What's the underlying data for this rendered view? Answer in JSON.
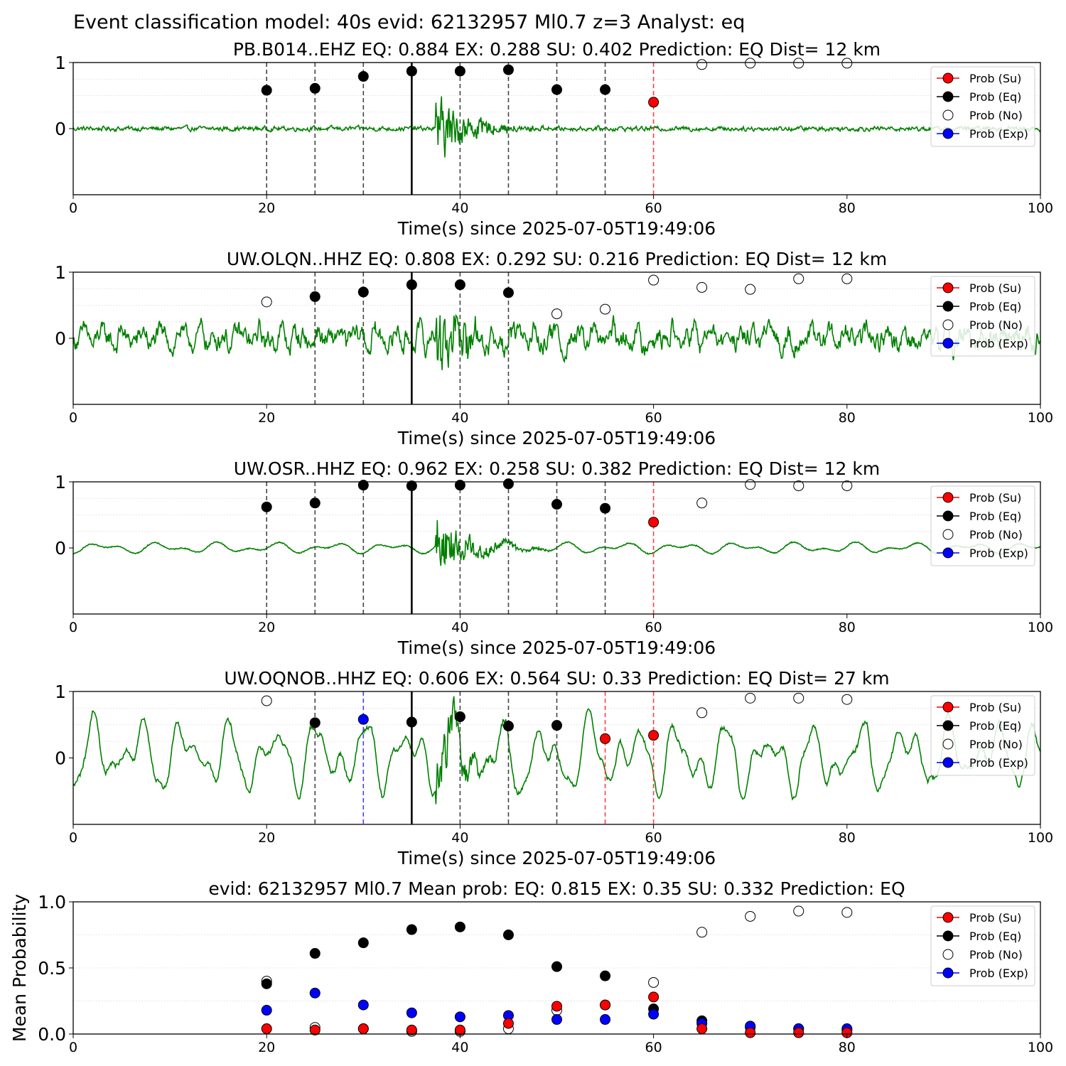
{
  "suptitle": "Event classification model: 40s evid: 62132957 Ml0.7 z=3 Analyst: eq",
  "legend_labels": [
    "Prob (Su)",
    "Prob (Eq)",
    "Prob (No)",
    "Prob (Exp)"
  ],
  "colors": {
    "su": "#ff0000",
    "eq": "#000000",
    "no": "#ffffff",
    "exp": "#0000ff",
    "trace": "#008000",
    "grid": "#dddddd"
  },
  "chart_data": [
    {
      "type": "scatter",
      "title": "PB.B014..EHZ   EQ: 0.884  EX: 0.288  SU: 0.402   Prediction: EQ    Dist= 12 km",
      "xlabel": "Time(s) since 2025-07-05T19:49:06",
      "xlim": [
        0,
        100
      ],
      "ylim": [
        -1,
        1
      ],
      "xticks": [
        "0",
        "20",
        "40",
        "60",
        "80",
        "100"
      ],
      "yticks": [
        "0",
        "1"
      ],
      "pick_line": 35,
      "window_lines": [
        {
          "x": 20,
          "class": "eq"
        },
        {
          "x": 25,
          "class": "eq"
        },
        {
          "x": 30,
          "class": "eq"
        },
        {
          "x": 40,
          "class": "eq"
        },
        {
          "x": 45,
          "class": "eq"
        },
        {
          "x": 50,
          "class": "eq"
        },
        {
          "x": 55,
          "class": "eq"
        },
        {
          "x": 60,
          "class": "su"
        }
      ],
      "points": [
        {
          "x": 20,
          "y": 0.58,
          "class": "eq"
        },
        {
          "x": 25,
          "y": 0.61,
          "class": "eq"
        },
        {
          "x": 30,
          "y": 0.79,
          "class": "eq"
        },
        {
          "x": 35,
          "y": 0.87,
          "class": "eq"
        },
        {
          "x": 40,
          "y": 0.87,
          "class": "eq"
        },
        {
          "x": 45,
          "y": 0.89,
          "class": "eq"
        },
        {
          "x": 50,
          "y": 0.59,
          "class": "eq"
        },
        {
          "x": 55,
          "y": 0.59,
          "class": "eq"
        },
        {
          "x": 60,
          "y": 0.4,
          "class": "su"
        },
        {
          "x": 65,
          "y": 0.97,
          "class": "no"
        },
        {
          "x": 70,
          "y": 0.99,
          "class": "no"
        },
        {
          "x": 75,
          "y": 0.99,
          "class": "no"
        },
        {
          "x": 80,
          "y": 0.99,
          "class": "no"
        }
      ],
      "waveform": {
        "kind": "impulsive",
        "noise": 0.025,
        "onset": 37.5,
        "peak": 0.5
      }
    },
    {
      "type": "scatter",
      "title": "UW.OLQN..HHZ   EQ: 0.808  EX: 0.292  SU: 0.216   Prediction: EQ    Dist= 12 km",
      "xlabel": "Time(s) since 2025-07-05T19:49:06",
      "xlim": [
        0,
        100
      ],
      "ylim": [
        -1,
        1
      ],
      "xticks": [
        "0",
        "20",
        "40",
        "60",
        "80",
        "100"
      ],
      "yticks": [
        "0",
        "1"
      ],
      "pick_line": 35,
      "window_lines": [
        {
          "x": 25,
          "class": "eq"
        },
        {
          "x": 30,
          "class": "eq"
        },
        {
          "x": 40,
          "class": "eq"
        },
        {
          "x": 45,
          "class": "eq"
        }
      ],
      "points": [
        {
          "x": 20,
          "y": 0.55,
          "class": "no"
        },
        {
          "x": 25,
          "y": 0.63,
          "class": "eq"
        },
        {
          "x": 30,
          "y": 0.7,
          "class": "eq"
        },
        {
          "x": 35,
          "y": 0.81,
          "class": "eq"
        },
        {
          "x": 40,
          "y": 0.81,
          "class": "eq"
        },
        {
          "x": 45,
          "y": 0.69,
          "class": "eq"
        },
        {
          "x": 50,
          "y": 0.37,
          "class": "no"
        },
        {
          "x": 55,
          "y": 0.44,
          "class": "no"
        },
        {
          "x": 60,
          "y": 0.88,
          "class": "no"
        },
        {
          "x": 65,
          "y": 0.77,
          "class": "no"
        },
        {
          "x": 70,
          "y": 0.74,
          "class": "no"
        },
        {
          "x": 75,
          "y": 0.9,
          "class": "no"
        },
        {
          "x": 80,
          "y": 0.9,
          "class": "no"
        }
      ],
      "waveform": {
        "kind": "noisy",
        "noise": 0.12,
        "onset": 37.5,
        "peak": 0.5
      }
    },
    {
      "type": "scatter",
      "title": "UW.OSR..HHZ   EQ: 0.962  EX: 0.258  SU: 0.382   Prediction: EQ    Dist= 12 km",
      "xlabel": "Time(s) since 2025-07-05T19:49:06",
      "xlim": [
        0,
        100
      ],
      "ylim": [
        -1,
        1
      ],
      "xticks": [
        "0",
        "20",
        "40",
        "60",
        "80",
        "100"
      ],
      "yticks": [
        "0",
        "1"
      ],
      "pick_line": 35,
      "window_lines": [
        {
          "x": 20,
          "class": "eq"
        },
        {
          "x": 25,
          "class": "eq"
        },
        {
          "x": 30,
          "class": "eq"
        },
        {
          "x": 40,
          "class": "eq"
        },
        {
          "x": 45,
          "class": "eq"
        },
        {
          "x": 50,
          "class": "eq"
        },
        {
          "x": 55,
          "class": "eq"
        },
        {
          "x": 60,
          "class": "su"
        }
      ],
      "points": [
        {
          "x": 20,
          "y": 0.62,
          "class": "eq"
        },
        {
          "x": 25,
          "y": 0.68,
          "class": "eq"
        },
        {
          "x": 30,
          "y": 0.95,
          "class": "eq"
        },
        {
          "x": 35,
          "y": 0.94,
          "class": "eq"
        },
        {
          "x": 40,
          "y": 0.95,
          "class": "eq"
        },
        {
          "x": 45,
          "y": 0.97,
          "class": "eq"
        },
        {
          "x": 50,
          "y": 0.66,
          "class": "eq"
        },
        {
          "x": 55,
          "y": 0.6,
          "class": "eq"
        },
        {
          "x": 60,
          "y": 0.39,
          "class": "su"
        },
        {
          "x": 65,
          "y": 0.68,
          "class": "no"
        },
        {
          "x": 70,
          "y": 0.96,
          "class": "no"
        },
        {
          "x": 75,
          "y": 0.94,
          "class": "no"
        },
        {
          "x": 80,
          "y": 0.94,
          "class": "no"
        }
      ],
      "waveform": {
        "kind": "smooth",
        "noise": 0.06,
        "onset": 37.5,
        "peak": 0.5
      }
    },
    {
      "type": "scatter",
      "title": "UW.OQNOB..HHZ   EQ: 0.606  EX: 0.564  SU: 0.33   Prediction: EQ    Dist= 27 km",
      "xlabel": "Time(s) since 2025-07-05T19:49:06",
      "xlim": [
        0,
        100
      ],
      "ylim": [
        -1,
        1
      ],
      "xticks": [
        "0",
        "20",
        "40",
        "60",
        "80",
        "100"
      ],
      "yticks": [
        "0",
        "1"
      ],
      "pick_line": 35,
      "window_lines": [
        {
          "x": 25,
          "class": "eq"
        },
        {
          "x": 30,
          "class": "exp"
        },
        {
          "x": 40,
          "class": "eq"
        },
        {
          "x": 45,
          "class": "eq"
        },
        {
          "x": 50,
          "class": "eq"
        },
        {
          "x": 55,
          "class": "su"
        },
        {
          "x": 60,
          "class": "su"
        }
      ],
      "points": [
        {
          "x": 20,
          "y": 0.86,
          "class": "no"
        },
        {
          "x": 25,
          "y": 0.53,
          "class": "eq"
        },
        {
          "x": 30,
          "y": 0.58,
          "class": "exp"
        },
        {
          "x": 35,
          "y": 0.54,
          "class": "eq"
        },
        {
          "x": 40,
          "y": 0.62,
          "class": "eq"
        },
        {
          "x": 45,
          "y": 0.48,
          "class": "eq"
        },
        {
          "x": 50,
          "y": 0.49,
          "class": "eq"
        },
        {
          "x": 55,
          "y": 0.29,
          "class": "su"
        },
        {
          "x": 60,
          "y": 0.34,
          "class": "su"
        },
        {
          "x": 65,
          "y": 0.68,
          "class": "no"
        },
        {
          "x": 70,
          "y": 0.9,
          "class": "no"
        },
        {
          "x": 75,
          "y": 0.9,
          "class": "no"
        },
        {
          "x": 80,
          "y": 0.88,
          "class": "no"
        }
      ],
      "waveform": {
        "kind": "longperiod",
        "noise": 0.5,
        "onset": 37.5,
        "peak": 0.4
      }
    },
    {
      "type": "scatter",
      "title": "evid: 62132957  Ml0.7   Mean prob:   EQ: 0.815  EX: 0.35  SU: 0.332   Prediction: EQ",
      "xlabel": "",
      "ylabel": "Mean Probability",
      "xlim": [
        0,
        100
      ],
      "ylim": [
        0,
        1
      ],
      "xticks": [
        "0",
        "20",
        "40",
        "60",
        "80",
        "100"
      ],
      "yticks": [
        "0.0",
        "0.5",
        "1.0"
      ],
      "series": [
        {
          "name": "Prob (No)",
          "class": "no",
          "x": [
            20,
            25,
            30,
            35,
            40,
            45,
            50,
            55,
            60,
            65,
            70,
            75,
            80
          ],
          "y": [
            0.4,
            0.05,
            0.04,
            0.02,
            0.02,
            0.04,
            0.18,
            0.22,
            0.39,
            0.77,
            0.89,
            0.93,
            0.92
          ]
        },
        {
          "name": "Prob (Eq)",
          "class": "eq",
          "x": [
            20,
            25,
            30,
            35,
            40,
            45,
            50,
            55,
            60,
            65,
            70,
            75,
            80
          ],
          "y": [
            0.38,
            0.61,
            0.69,
            0.79,
            0.81,
            0.75,
            0.51,
            0.44,
            0.19,
            0.1,
            0.05,
            0.04,
            0.03
          ]
        },
        {
          "name": "Prob (Exp)",
          "class": "exp",
          "x": [
            20,
            25,
            30,
            35,
            40,
            45,
            50,
            55,
            60,
            65,
            70,
            75,
            80
          ],
          "y": [
            0.18,
            0.31,
            0.22,
            0.16,
            0.13,
            0.14,
            0.11,
            0.11,
            0.15,
            0.08,
            0.06,
            0.04,
            0.04
          ]
        },
        {
          "name": "Prob (Su)",
          "class": "su",
          "x": [
            20,
            25,
            30,
            35,
            40,
            45,
            50,
            55,
            60,
            65,
            70,
            75,
            80
          ],
          "y": [
            0.04,
            0.03,
            0.04,
            0.03,
            0.03,
            0.08,
            0.21,
            0.22,
            0.28,
            0.04,
            0.01,
            0.01,
            0.01
          ]
        }
      ]
    }
  ]
}
